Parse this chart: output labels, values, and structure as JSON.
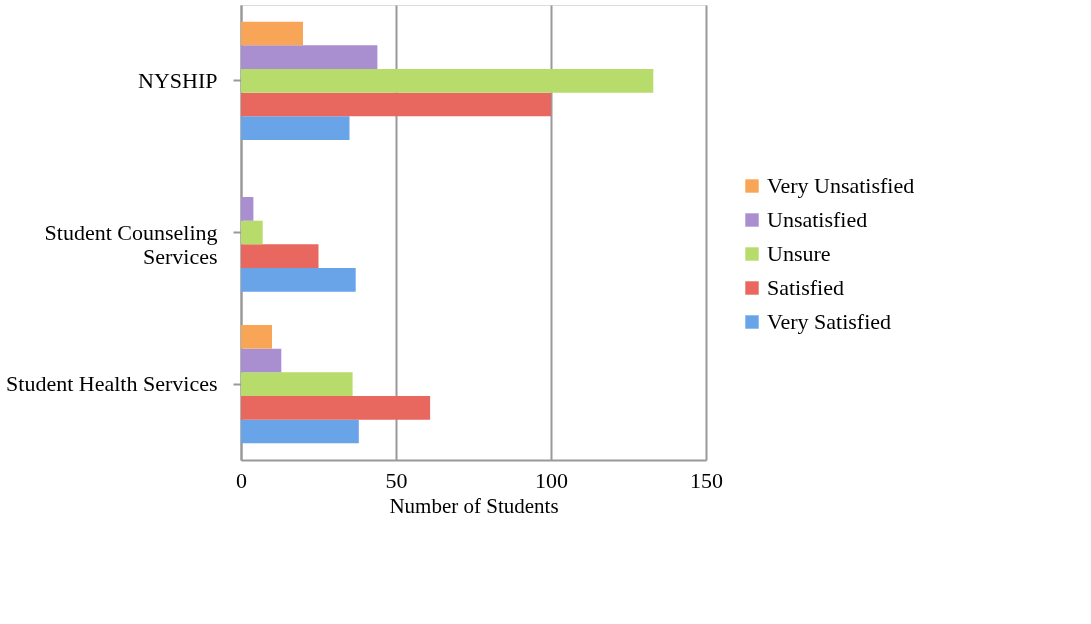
{
  "chart_data": {
    "type": "bar",
    "orientation": "horizontal",
    "xlabel": "Number of Students",
    "categories": [
      "NYSHIP",
      "Student Counseling Services",
      "Student Health Services"
    ],
    "series": [
      {
        "name": "Very Satisfied",
        "color": "#6aa4e8",
        "values": [
          35,
          37,
          38
        ]
      },
      {
        "name": "Satisfied",
        "color": "#e8675e",
        "values": [
          100,
          25,
          61
        ]
      },
      {
        "name": "Unsure",
        "color": "#b8dc6c",
        "values": [
          133,
          7,
          36
        ]
      },
      {
        "name": "Unsatisfied",
        "color": "#a98fcf",
        "values": [
          44,
          4,
          13
        ]
      },
      {
        "name": "Very Unsatisfied",
        "color": "#f9a557",
        "values": [
          20,
          0,
          10
        ]
      }
    ],
    "xlim": [
      0,
      150
    ],
    "xticks": [
      0,
      50,
      100,
      150
    ],
    "grid": "x",
    "legend": "right"
  }
}
